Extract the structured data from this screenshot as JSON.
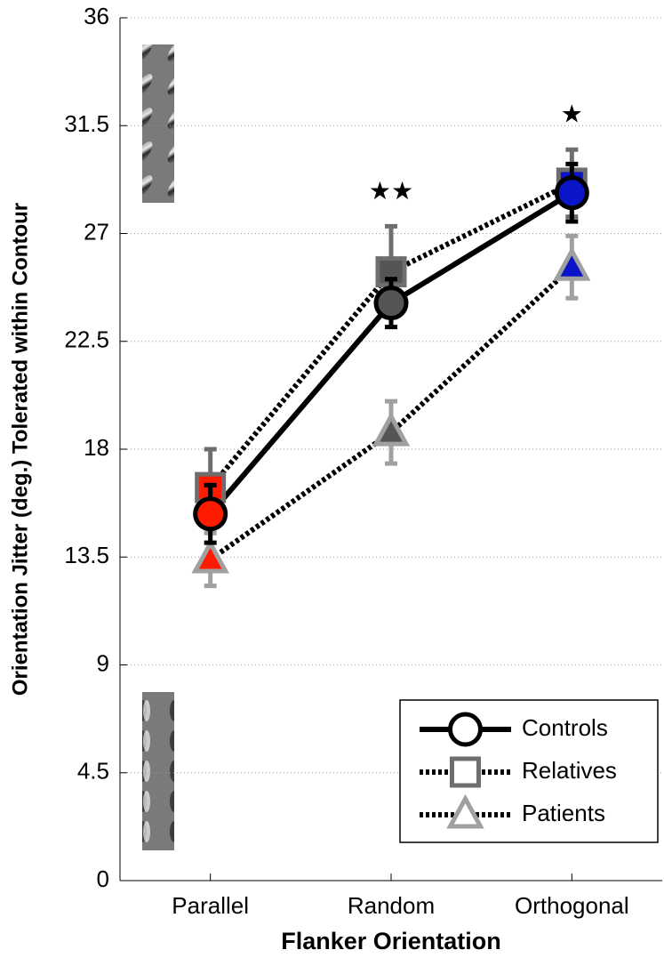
{
  "chart_data": {
    "type": "line",
    "xlabel": "Flanker Orientation",
    "ylabel": "Orientation Jitter (deg.) Tolerated within Contour",
    "categories": [
      "Parallel",
      "Random",
      "Orthogonal"
    ],
    "category_colors": [
      "#ff1a00",
      "#555555",
      "#0a14c8"
    ],
    "ylim": [
      0,
      36
    ],
    "yticks": [
      0,
      4.5,
      9,
      13.5,
      18,
      22.5,
      27,
      31.5,
      36
    ],
    "grid": true,
    "legend": "lower right",
    "series": [
      {
        "name": "Controls",
        "color": "#000000",
        "marker": "circle",
        "line_style": "solid",
        "values": [
          15.3,
          24.1,
          28.7
        ],
        "errors": [
          1.2,
          1.0,
          1.2
        ]
      },
      {
        "name": "Relatives",
        "color": "#6e6e6e",
        "marker": "square",
        "line_style": "dotted",
        "values": [
          16.4,
          25.4,
          29.1
        ],
        "errors": [
          1.6,
          1.9,
          1.4
        ]
      },
      {
        "name": "Patients",
        "color": "#a0a0a0",
        "marker": "triangle",
        "line_style": "dotted",
        "values": [
          13.4,
          18.7,
          25.6
        ],
        "errors": [
          1.1,
          1.3,
          1.3
        ]
      }
    ],
    "annotations": [
      {
        "text": "★★",
        "category": "Random"
      },
      {
        "text": "★",
        "category": "Orthogonal"
      }
    ]
  }
}
